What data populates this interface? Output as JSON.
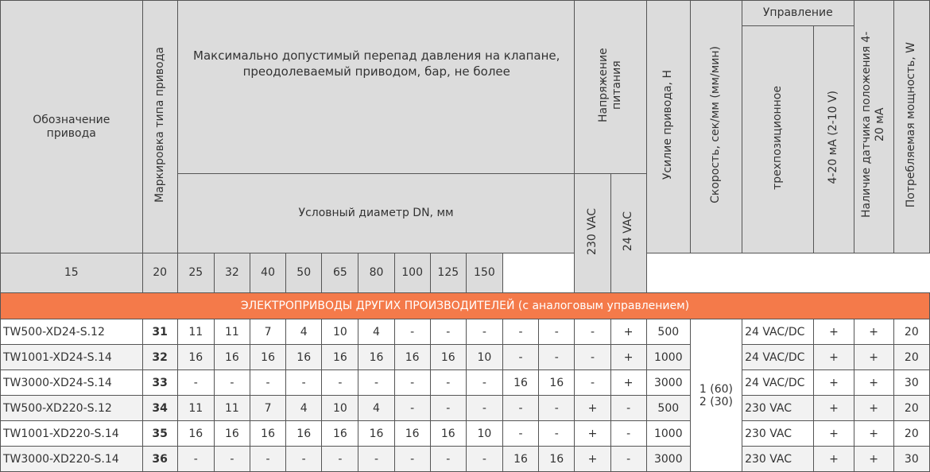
{
  "header": {
    "designation": "Обозначение привода",
    "marking": "Маркировка типа привода",
    "max_pressure": "Максимально допустимый перепад давления на клапане, преодолеваемый приводом, бар, не более",
    "nominal_diameter": "Условный диаметр DN, мм",
    "diameters": [
      "15",
      "20",
      "25",
      "32",
      "40",
      "50",
      "65",
      "80",
      "100",
      "125",
      "150"
    ],
    "supply_voltage": "Напряжение питания",
    "voltage_230": "230 VAC",
    "voltage_24": "24 VAC",
    "force": "Усилие привода, Н",
    "speed": "Скорость, сек/мм (мм/мин)",
    "control": "Управление",
    "three_position": "трехпозиционное",
    "analog": "4-20 мА (2-10 V)",
    "position_sensor": "Наличие датчика положения 4-20 мА",
    "power": "Потребляемая мощность, W"
  },
  "section_title": "ЭЛЕКТРОПРИВОДЫ ДРУГИХ ПРОИЗВОДИТЕЛЕЙ (с аналоговым управлением)",
  "speed_value_line1": "1 (60)",
  "speed_value_line2": "2 (30)",
  "rows": [
    {
      "name": "TW500-XD24-S.12",
      "code": "31",
      "d": [
        "11",
        "11",
        "7",
        "4",
        "10",
        "4",
        "-",
        "-",
        "-",
        "-",
        "-"
      ],
      "v230": "-",
      "v24": "+",
      "force": "500",
      "ctrl": "24 VAC/DC",
      "analog": "+",
      "sensor": "+",
      "power": "20"
    },
    {
      "name": "TW1001-XD24-S.14",
      "code": "32",
      "d": [
        "16",
        "16",
        "16",
        "16",
        "16",
        "16",
        "16",
        "16",
        "10",
        "-",
        "-"
      ],
      "v230": "-",
      "v24": "+",
      "force": "1000",
      "ctrl": "24 VAC/DC",
      "analog": "+",
      "sensor": "+",
      "power": "20"
    },
    {
      "name": "TW3000-XD24-S.14",
      "code": "33",
      "d": [
        "-",
        "-",
        "-",
        "-",
        "-",
        "-",
        "-",
        "-",
        "-",
        "16",
        "16"
      ],
      "v230": "-",
      "v24": "+",
      "force": "3000",
      "ctrl": "24 VAC/DC",
      "analog": "+",
      "sensor": "+",
      "power": "30"
    },
    {
      "name": "TW500-XD220-S.12",
      "code": "34",
      "d": [
        "11",
        "11",
        "7",
        "4",
        "10",
        "4",
        "-",
        "-",
        "-",
        "-",
        "-"
      ],
      "v230": "+",
      "v24": "-",
      "force": "500",
      "ctrl": "230 VAC",
      "analog": "+",
      "sensor": "+",
      "power": "20"
    },
    {
      "name": "TW1001-XD220-S.14",
      "code": "35",
      "d": [
        "16",
        "16",
        "16",
        "16",
        "16",
        "16",
        "16",
        "16",
        "10",
        "-",
        "-"
      ],
      "v230": "+",
      "v24": "-",
      "force": "1000",
      "ctrl": "230 VAC",
      "analog": "+",
      "sensor": "+",
      "power": "20"
    },
    {
      "name": "TW3000-XD220-S.14",
      "code": "36",
      "d": [
        "-",
        "-",
        "-",
        "-",
        "-",
        "-",
        "-",
        "-",
        "-",
        "16",
        "16"
      ],
      "v230": "+",
      "v24": "-",
      "force": "3000",
      "ctrl": "230 VAC",
      "analog": "+",
      "sensor": "+",
      "power": "30"
    }
  ]
}
